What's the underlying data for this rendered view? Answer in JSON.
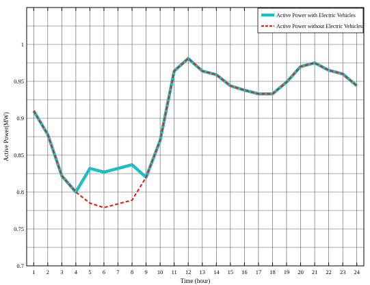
{
  "chart_data": {
    "type": "line",
    "xlabel": "Time (hour)",
    "ylabel": "Active Power(MW)",
    "x": [
      1,
      2,
      3,
      4,
      5,
      6,
      7,
      8,
      9,
      10,
      11,
      12,
      13,
      14,
      15,
      16,
      17,
      18,
      19,
      20,
      21,
      22,
      23,
      24
    ],
    "xlim": [
      0.5,
      24.5
    ],
    "ylim": [
      0.7,
      1.05
    ],
    "yticks": [
      0.7,
      0.75,
      0.8,
      0.85,
      0.9,
      0.95,
      1
    ],
    "ytick_labels": [
      "0.7",
      "0.75",
      "0.8",
      "0.85",
      "0.9",
      "0.95",
      "1"
    ],
    "grid": true,
    "legend_position": "top-right",
    "series": [
      {
        "name": "Active Power with Electric Vehicles",
        "color": "#1fbfbf",
        "style": "solid",
        "values": [
          0.91,
          0.878,
          0.822,
          0.8,
          0.832,
          0.827,
          0.832,
          0.837,
          0.82,
          0.87,
          0.964,
          0.981,
          0.964,
          0.959,
          0.944,
          0.938,
          0.933,
          0.933,
          0.949,
          0.97,
          0.975,
          0.965,
          0.96,
          0.944
        ]
      },
      {
        "name": "Active Power without Electric Vehicles",
        "color": "#e8211e",
        "style": "dashed",
        "values": [
          0.91,
          0.878,
          0.822,
          0.8,
          0.785,
          0.779,
          0.784,
          0.789,
          0.82,
          0.87,
          0.964,
          0.981,
          0.964,
          0.959,
          0.944,
          0.938,
          0.933,
          0.933,
          0.949,
          0.97,
          0.975,
          0.965,
          0.96,
          0.944
        ]
      }
    ]
  }
}
